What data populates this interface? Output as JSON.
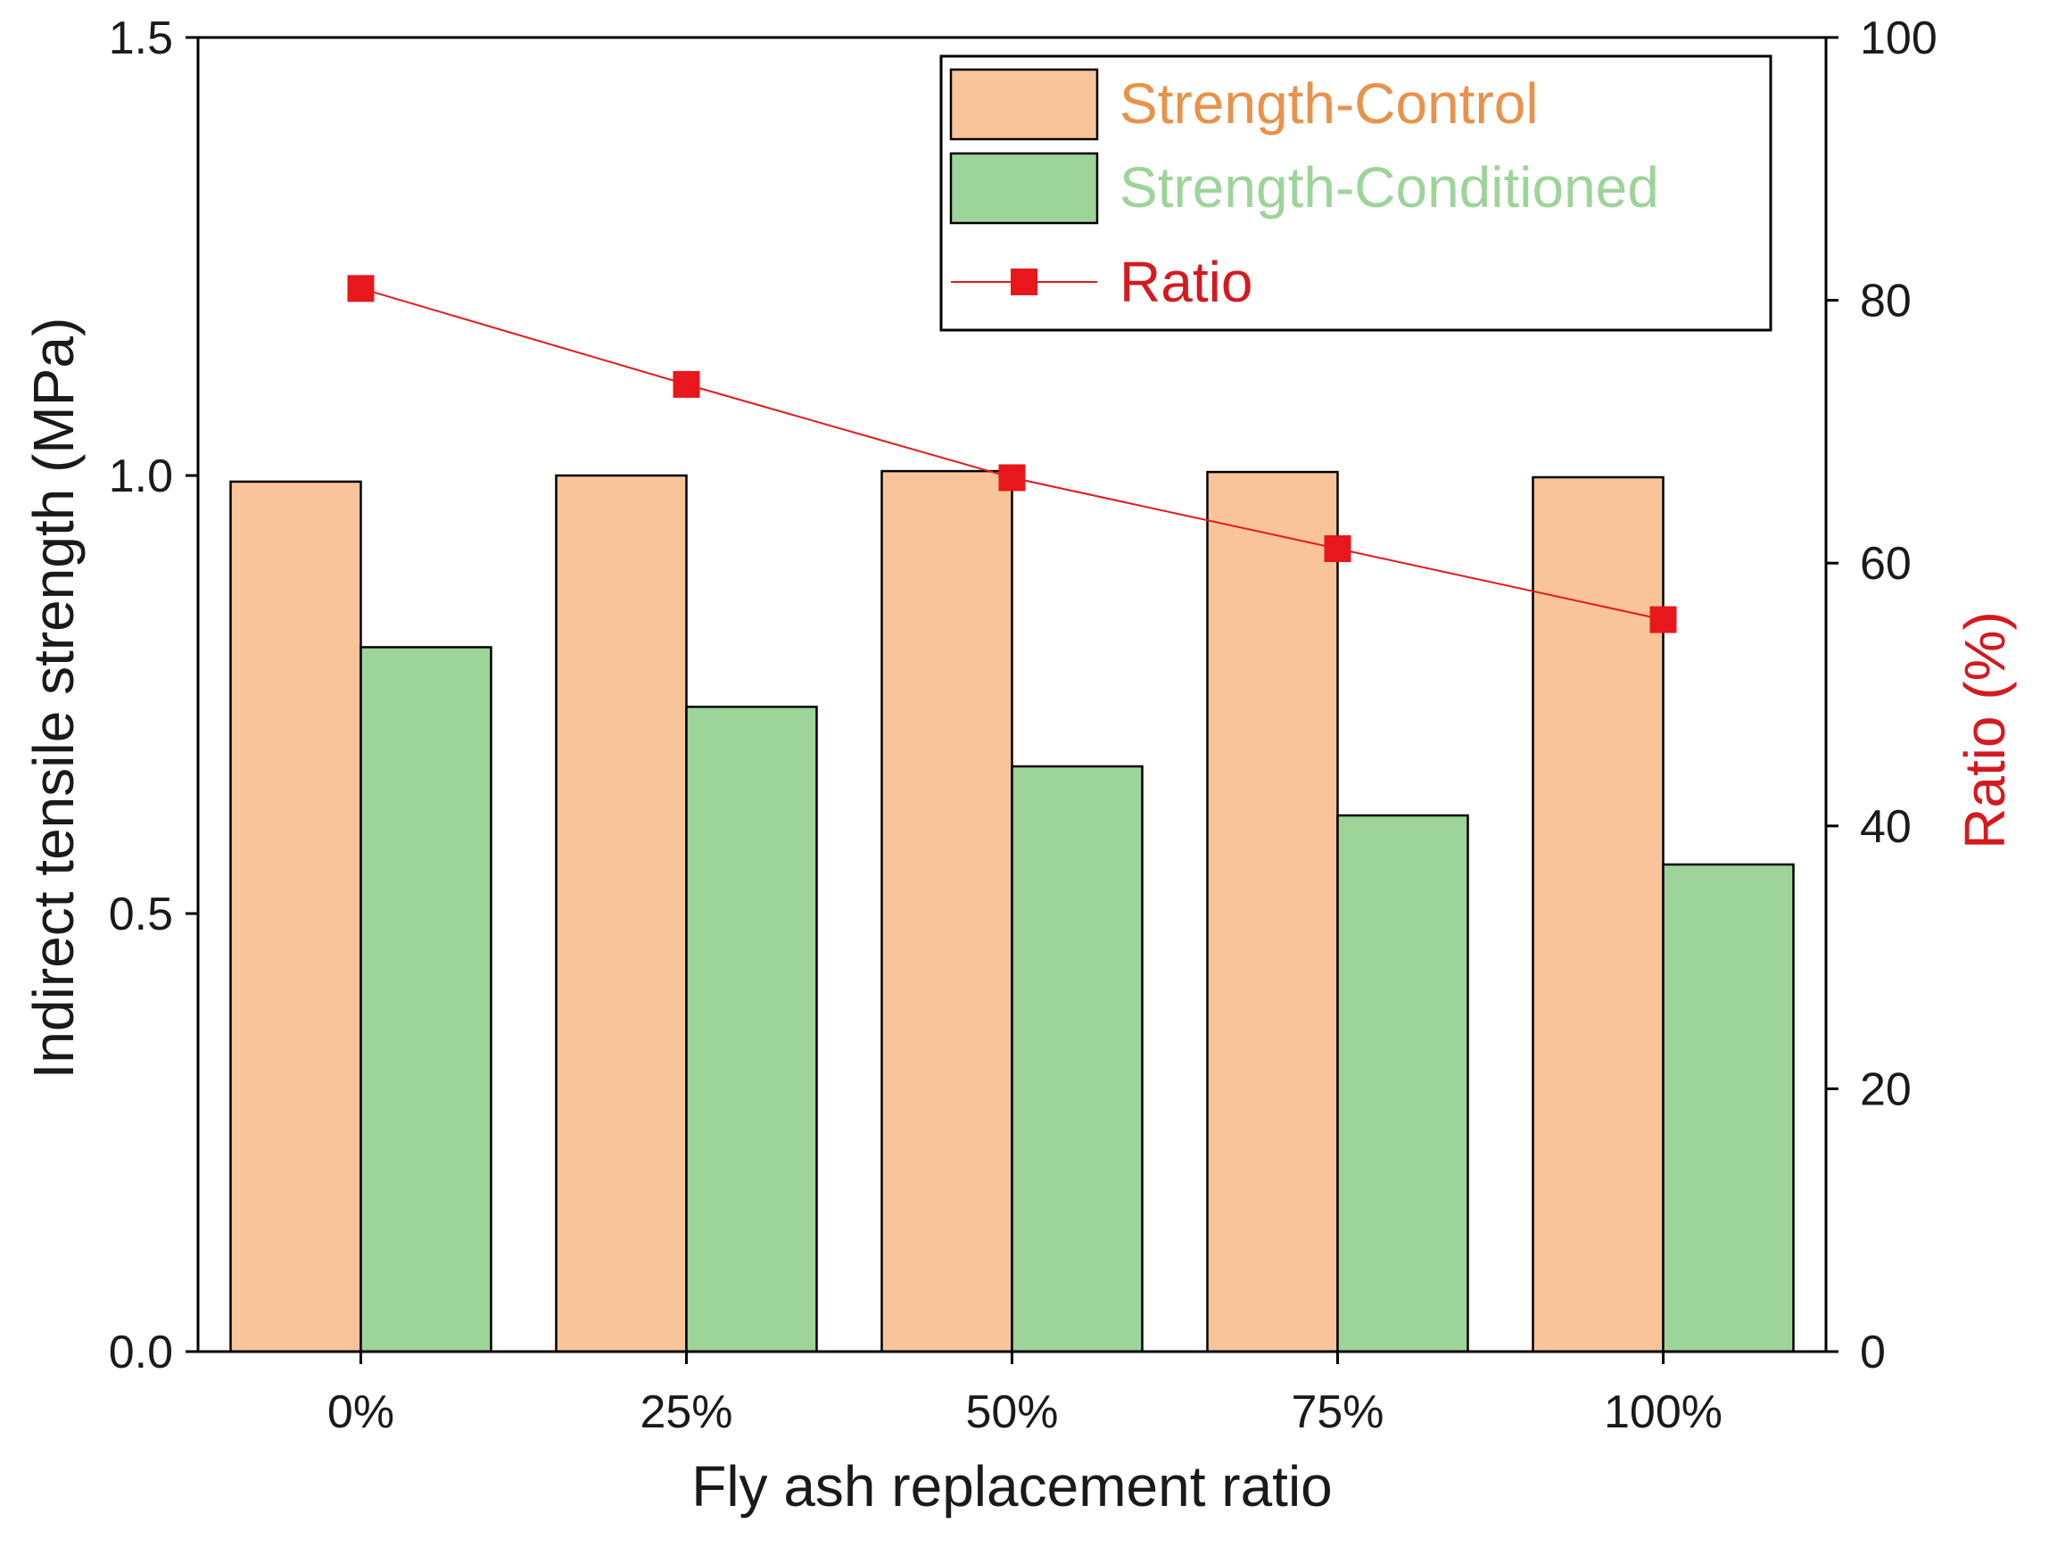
{
  "chart_data": {
    "type": "bar",
    "title": "",
    "categories": [
      "0%",
      "25%",
      "50%",
      "75%",
      "100%"
    ],
    "xlabel": "Fly ash replacement ratio",
    "ylabel": "Indirect tensile strength (MPa)",
    "ylim": [
      0,
      1.5
    ],
    "yticks": [
      "0.0",
      "0.5",
      "1.0",
      "1.5"
    ],
    "y2label": "Ratio (%)",
    "y2lim": [
      0,
      100
    ],
    "y2ticks": [
      "0",
      "20",
      "40",
      "60",
      "80",
      "100"
    ],
    "series": [
      {
        "name": "Strength-Control",
        "type": "bar",
        "axis": "left",
        "color": "#f9c49a",
        "label_color": "#e8924a",
        "values": [
          0.993,
          1.0,
          1.005,
          1.004,
          0.998
        ]
      },
      {
        "name": "Strength-Conditioned",
        "type": "bar",
        "axis": "left",
        "color": "#9dd49a",
        "label_color": "#9dd49a",
        "values": [
          0.804,
          0.736,
          0.668,
          0.612,
          0.556
        ]
      },
      {
        "name": "Ratio",
        "type": "line",
        "axis": "right",
        "color": "#e8171c",
        "label_color": "#d41a1f",
        "marker": "square",
        "values": [
          80.9,
          73.6,
          66.5,
          61.1,
          55.7
        ]
      }
    ],
    "legend": "top-right",
    "grid": false
  }
}
